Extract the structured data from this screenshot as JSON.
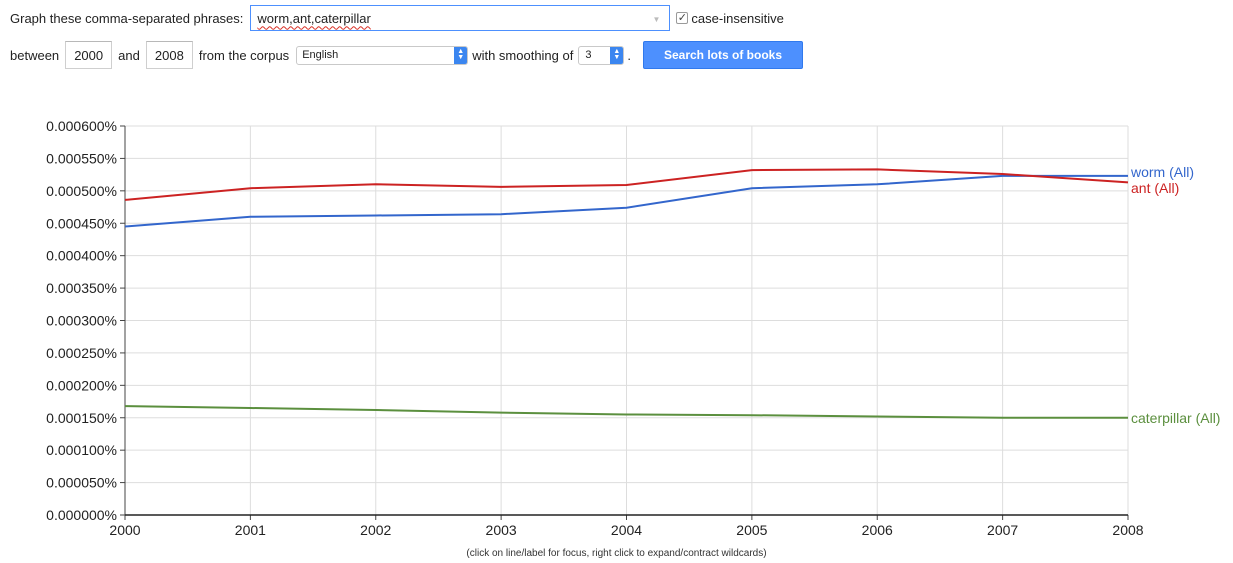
{
  "query": {
    "phrases_label": "Graph these comma-separated phrases:",
    "phrases_value": "worm,ant,caterpillar",
    "case_insensitive_label": "case-insensitive",
    "between_label": "between",
    "start_year": "2000",
    "and_label": "and",
    "end_year": "2008",
    "corpus_label": "from the corpus",
    "corpus_value": "English",
    "smoothing_label": "with smoothing of",
    "smoothing_value": "3",
    "period": ".",
    "search_button": "Search lots of books"
  },
  "hint": "(click on line/label for focus, right click to expand/contract wildcards)",
  "chart_data": {
    "type": "line",
    "x": [
      2000,
      2001,
      2002,
      2003,
      2004,
      2005,
      2006,
      2007,
      2008
    ],
    "xlim": [
      2000,
      2008
    ],
    "ylim": [
      0,
      0.0006
    ],
    "yticks": [
      "0.000000%",
      "0.000050%",
      "0.000100%",
      "0.000150%",
      "0.000200%",
      "0.000250%",
      "0.000300%",
      "0.000350%",
      "0.000400%",
      "0.000450%",
      "0.000500%",
      "0.000550%",
      "0.000600%"
    ],
    "xticks": [
      "2000",
      "2001",
      "2002",
      "2003",
      "2004",
      "2005",
      "2006",
      "2007",
      "2008"
    ],
    "grid": true,
    "series": [
      {
        "name": "worm (All)",
        "color": "#3366cc",
        "values": [
          0.000445,
          0.00046,
          0.000462,
          0.000464,
          0.000474,
          0.000504,
          0.00051,
          0.000523,
          0.000523
        ]
      },
      {
        "name": "ant (All)",
        "color": "#cc2222",
        "values": [
          0.000486,
          0.000504,
          0.00051,
          0.000506,
          0.000509,
          0.000532,
          0.000533,
          0.000526,
          0.000513
        ]
      },
      {
        "name": "caterpillar (All)",
        "color": "#5b8f3e",
        "values": [
          0.000168,
          0.000165,
          0.000162,
          0.000158,
          0.000155,
          0.000154,
          0.000152,
          0.00015,
          0.00015
        ]
      }
    ]
  }
}
